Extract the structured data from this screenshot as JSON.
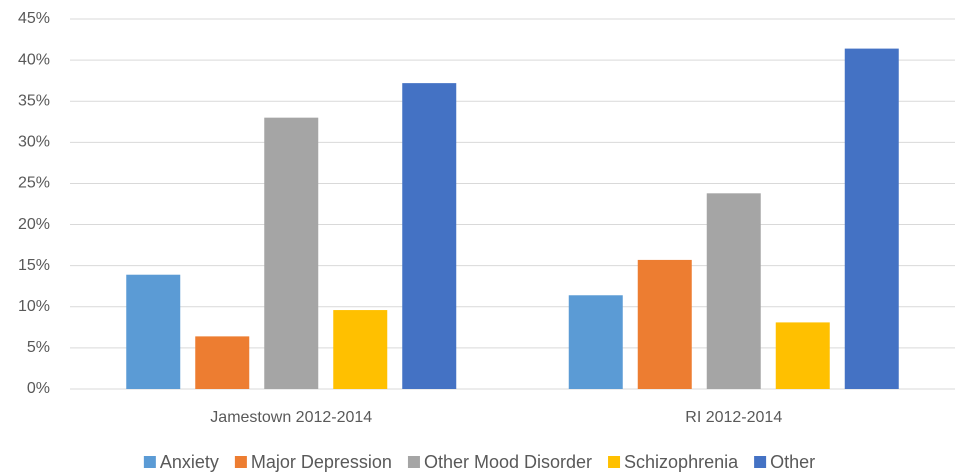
{
  "chart_data": {
    "type": "bar",
    "categories": [
      "Jamestown 2012-2014",
      "RI 2012-2014"
    ],
    "series": [
      {
        "name": "Anxiety",
        "color": "#5b9bd5",
        "values": [
          13.9,
          11.4
        ]
      },
      {
        "name": "Major Depression",
        "color": "#ed7d31",
        "values": [
          6.4,
          15.7
        ]
      },
      {
        "name": "Other Mood Disorder",
        "color": "#a5a5a5",
        "values": [
          33.0,
          23.8
        ]
      },
      {
        "name": "Schizophrenia",
        "color": "#ffc000",
        "values": [
          9.6,
          8.1
        ]
      },
      {
        "name": "Other",
        "color": "#4472c4",
        "values": [
          37.2,
          41.4
        ]
      }
    ],
    "ylim": [
      0,
      45
    ],
    "yticks": [
      {
        "value": 0,
        "label": "0%"
      },
      {
        "value": 5,
        "label": "5%"
      },
      {
        "value": 10,
        "label": "10%"
      },
      {
        "value": 15,
        "label": "15%"
      },
      {
        "value": 20,
        "label": "20%"
      },
      {
        "value": 25,
        "label": "25%"
      },
      {
        "value": 30,
        "label": "30%"
      },
      {
        "value": 35,
        "label": "35%"
      },
      {
        "value": 40,
        "label": "40%"
      },
      {
        "value": 45,
        "label": "45%"
      }
    ],
    "grid": true,
    "legend": "bottom"
  }
}
